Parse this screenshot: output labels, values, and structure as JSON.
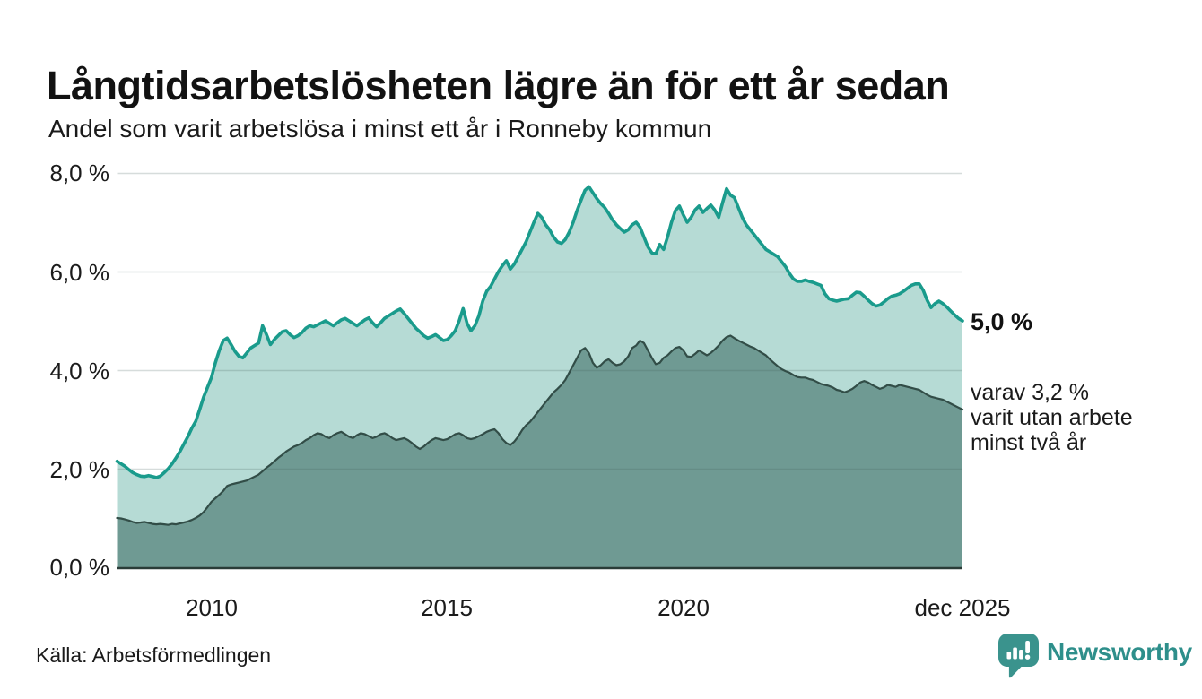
{
  "header": {
    "title": "Långtidsarbetslösheten lägre än för ett år sedan",
    "subtitle": "Andel som varit arbetslösa i minst ett år i Ronneby kommun"
  },
  "annotations": {
    "latest": "5,0 %",
    "secondary": [
      "varav 3,2 %",
      "varit utan arbete",
      "minst två år"
    ]
  },
  "footer": {
    "source": "Källa: Arbetsförmedlingen",
    "brand": "Newsworthy"
  },
  "colors": {
    "line_1yr": "#1a9b8c",
    "fill_1yr": "#b6dbd5",
    "line_2yr": "#324d47",
    "fill_2yr": "#6f9a93",
    "grid_overlay": "rgba(70,95,92,0.22)",
    "baseline": "#2a3c38",
    "brand_teal": "#2e8f8b"
  },
  "chart_data": {
    "type": "area",
    "title": "Långtidsarbetslösheten lägre än för ett år sedan",
    "subtitle": "Andel som varit arbetslösa i minst ett år i Ronneby kommun",
    "unit": "%",
    "frequency": "monthly",
    "x_start": "jan 2008",
    "x_end": "dec 2025",
    "ylim": [
      0,
      8
    ],
    "grid": true,
    "y_tick_labels": [
      "0,0 %",
      "2,0 %",
      "4,0 %",
      "6,0 %",
      "8,0 %"
    ],
    "y_tick_values": [
      0,
      2,
      4,
      6,
      8
    ],
    "x_tick_labels": [
      "2010",
      "2015",
      "2020",
      "dec 2025"
    ],
    "x_tick_indices": [
      24,
      84,
      144,
      215
    ],
    "series": [
      {
        "name": "Arbetslösa minst ett år",
        "latest_value": 5.0,
        "color": "#1a9b8c",
        "fill": "#b6dbd5",
        "values": [
          2.15,
          2.1,
          2.05,
          1.98,
          1.92,
          1.88,
          1.85,
          1.84,
          1.86,
          1.84,
          1.82,
          1.85,
          1.92,
          2.0,
          2.1,
          2.22,
          2.35,
          2.5,
          2.65,
          2.82,
          2.96,
          3.2,
          3.45,
          3.65,
          3.85,
          4.15,
          4.4,
          4.6,
          4.65,
          4.52,
          4.38,
          4.28,
          4.25,
          4.35,
          4.45,
          4.5,
          4.55,
          4.9,
          4.72,
          4.52,
          4.62,
          4.7,
          4.78,
          4.8,
          4.72,
          4.66,
          4.7,
          4.76,
          4.85,
          4.9,
          4.88,
          4.92,
          4.96,
          5.0,
          4.95,
          4.9,
          4.96,
          5.02,
          5.05,
          5.0,
          4.95,
          4.9,
          4.96,
          5.02,
          5.06,
          4.96,
          4.88,
          4.96,
          5.05,
          5.1,
          5.15,
          5.2,
          5.24,
          5.15,
          5.05,
          4.95,
          4.85,
          4.78,
          4.7,
          4.65,
          4.68,
          4.72,
          4.66,
          4.6,
          4.62,
          4.7,
          4.8,
          5.0,
          5.25,
          4.95,
          4.8,
          4.9,
          5.1,
          5.4,
          5.6,
          5.7,
          5.85,
          6.0,
          6.12,
          6.22,
          6.05,
          6.15,
          6.3,
          6.45,
          6.6,
          6.8,
          7.0,
          7.18,
          7.1,
          6.95,
          6.85,
          6.7,
          6.6,
          6.57,
          6.65,
          6.8,
          7.0,
          7.24,
          7.45,
          7.65,
          7.72,
          7.6,
          7.48,
          7.38,
          7.3,
          7.18,
          7.05,
          6.95,
          6.87,
          6.8,
          6.85,
          6.95,
          7.0,
          6.9,
          6.7,
          6.5,
          6.38,
          6.36,
          6.55,
          6.45,
          6.7,
          7.0,
          7.24,
          7.33,
          7.15,
          7.0,
          7.1,
          7.25,
          7.33,
          7.2,
          7.28,
          7.35,
          7.25,
          7.1,
          7.4,
          7.68,
          7.55,
          7.5,
          7.3,
          7.1,
          6.95,
          6.85,
          6.75,
          6.65,
          6.55,
          6.45,
          6.4,
          6.35,
          6.3,
          6.2,
          6.1,
          5.96,
          5.85,
          5.8,
          5.8,
          5.83,
          5.8,
          5.78,
          5.75,
          5.72,
          5.55,
          5.45,
          5.42,
          5.4,
          5.42,
          5.44,
          5.45,
          5.52,
          5.58,
          5.57,
          5.5,
          5.42,
          5.35,
          5.3,
          5.32,
          5.38,
          5.45,
          5.5,
          5.52,
          5.55,
          5.6,
          5.66,
          5.72,
          5.75,
          5.75,
          5.62,
          5.42,
          5.27,
          5.35,
          5.4,
          5.35,
          5.28,
          5.2,
          5.12,
          5.05,
          5.0
        ]
      },
      {
        "name": "Varit utan arbete minst två år",
        "latest_value": 3.2,
        "color": "#324d47",
        "fill": "#6f9a93",
        "values": [
          1.0,
          0.99,
          0.97,
          0.95,
          0.92,
          0.9,
          0.91,
          0.92,
          0.9,
          0.88,
          0.87,
          0.88,
          0.87,
          0.86,
          0.88,
          0.87,
          0.89,
          0.91,
          0.93,
          0.96,
          1.0,
          1.05,
          1.12,
          1.22,
          1.33,
          1.4,
          1.47,
          1.55,
          1.65,
          1.68,
          1.7,
          1.72,
          1.74,
          1.76,
          1.8,
          1.84,
          1.88,
          1.95,
          2.02,
          2.08,
          2.15,
          2.22,
          2.28,
          2.35,
          2.4,
          2.45,
          2.48,
          2.52,
          2.58,
          2.62,
          2.68,
          2.72,
          2.7,
          2.65,
          2.62,
          2.68,
          2.72,
          2.75,
          2.7,
          2.65,
          2.62,
          2.68,
          2.72,
          2.7,
          2.66,
          2.62,
          2.65,
          2.7,
          2.72,
          2.68,
          2.62,
          2.58,
          2.6,
          2.62,
          2.58,
          2.52,
          2.45,
          2.4,
          2.45,
          2.52,
          2.58,
          2.62,
          2.6,
          2.58,
          2.6,
          2.65,
          2.7,
          2.72,
          2.68,
          2.62,
          2.6,
          2.62,
          2.66,
          2.7,
          2.75,
          2.78,
          2.8,
          2.72,
          2.6,
          2.52,
          2.48,
          2.55,
          2.65,
          2.78,
          2.88,
          2.95,
          3.05,
          3.15,
          3.25,
          3.35,
          3.45,
          3.55,
          3.62,
          3.7,
          3.8,
          3.95,
          4.1,
          4.25,
          4.4,
          4.45,
          4.35,
          4.15,
          4.05,
          4.1,
          4.18,
          4.22,
          4.15,
          4.1,
          4.12,
          4.18,
          4.28,
          4.45,
          4.5,
          4.6,
          4.55,
          4.4,
          4.25,
          4.12,
          4.15,
          4.25,
          4.3,
          4.38,
          4.45,
          4.47,
          4.4,
          4.28,
          4.27,
          4.33,
          4.4,
          4.35,
          4.3,
          4.35,
          4.42,
          4.5,
          4.6,
          4.67,
          4.7,
          4.65,
          4.6,
          4.56,
          4.52,
          4.48,
          4.45,
          4.4,
          4.35,
          4.3,
          4.22,
          4.15,
          4.08,
          4.02,
          3.98,
          3.95,
          3.9,
          3.86,
          3.85,
          3.85,
          3.82,
          3.8,
          3.76,
          3.72,
          3.7,
          3.68,
          3.65,
          3.6,
          3.58,
          3.55,
          3.58,
          3.62,
          3.68,
          3.75,
          3.78,
          3.75,
          3.7,
          3.66,
          3.62,
          3.65,
          3.7,
          3.68,
          3.66,
          3.7,
          3.68,
          3.66,
          3.64,
          3.62,
          3.6,
          3.55,
          3.5,
          3.46,
          3.44,
          3.42,
          3.4,
          3.36,
          3.32,
          3.28,
          3.24,
          3.2
        ]
      }
    ]
  }
}
